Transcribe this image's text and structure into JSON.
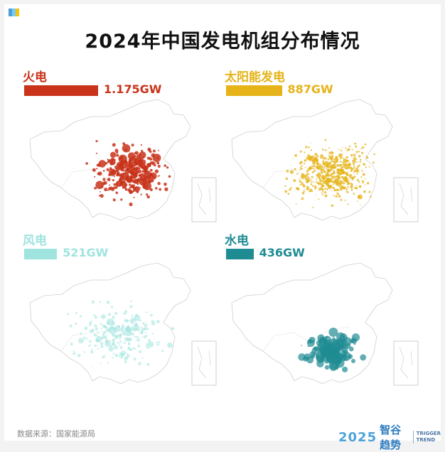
{
  "header": {
    "title": "2024年中国发电机组分布情况"
  },
  "chart_data": {
    "type": "bar",
    "title": "2024年中国发电机组分布情况",
    "categories": [
      "火电",
      "太阳能发电",
      "风电",
      "水电"
    ],
    "values": [
      1175,
      887,
      521,
      436
    ],
    "unit": "GW",
    "value_labels": [
      "1.175GW",
      "887GW",
      "521GW",
      "436GW"
    ],
    "colors": [
      "#c8331a",
      "#e6b318",
      "#9fe4df",
      "#1f8c93"
    ]
  },
  "panels": [
    {
      "label": "火电",
      "value": "1.175GW",
      "color": "#c8331a"
    },
    {
      "label": "太阳能发电",
      "value": "887GW",
      "color": "#e6b318"
    },
    {
      "label": "风电",
      "value": "521GW",
      "color": "#9fe4df"
    },
    {
      "label": "水电",
      "value": "436GW",
      "color": "#1f8c93"
    }
  ],
  "footer": {
    "source": "数据来源：国家能源局",
    "brand_year": "2025",
    "brand_name": "智谷趋势",
    "brand_en_1": "TRIGGER",
    "brand_en_2": "TREND"
  },
  "decor": {
    "corner_colors": [
      "#4a9fd8",
      "#7cc9f2",
      "#f1c40f"
    ]
  }
}
